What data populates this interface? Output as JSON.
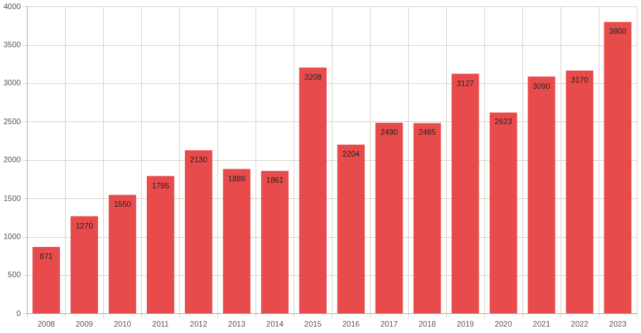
{
  "chart_data": {
    "type": "bar",
    "categories": [
      "2008",
      "2009",
      "2010",
      "2011",
      "2012",
      "2013",
      "2014",
      "2015",
      "2016",
      "2017",
      "2018",
      "2019",
      "2020",
      "2021",
      "2022",
      "2023"
    ],
    "values": [
      871,
      1270,
      1550,
      1795,
      2130,
      1886,
      1861,
      3208,
      2204,
      2490,
      2485,
      3127,
      2623,
      3090,
      3170,
      3800
    ],
    "color": "#e84b4b",
    "ylim": [
      0,
      4000
    ],
    "yticks": [
      0,
      500,
      1000,
      1500,
      2000,
      2500,
      3000,
      3500,
      4000
    ],
    "grid": true,
    "data_labels": true
  }
}
